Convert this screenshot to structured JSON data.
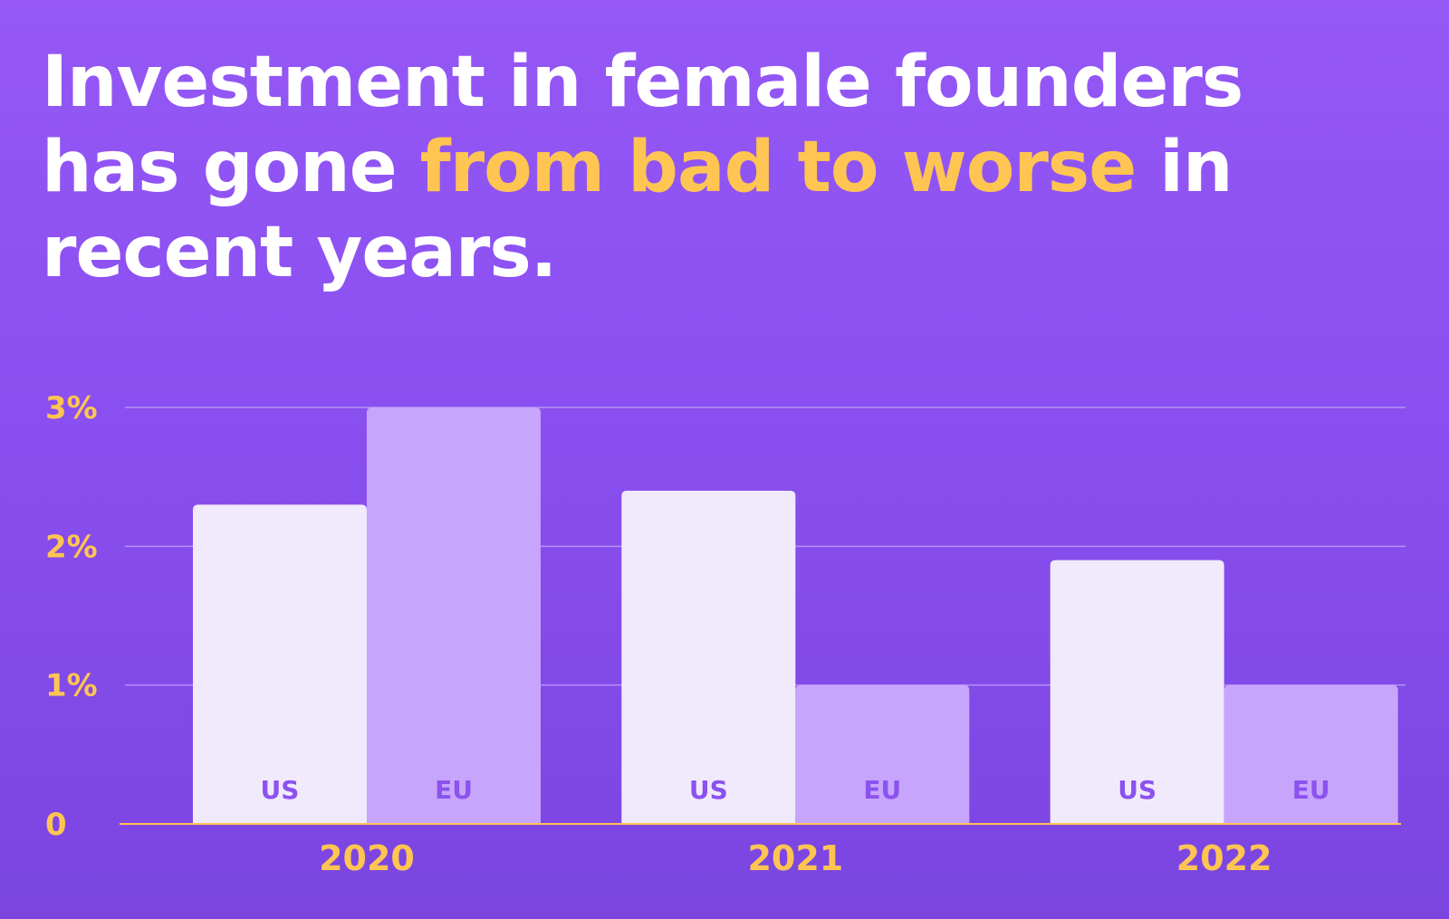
{
  "headline": {
    "part1": "Investment in female founders has gone ",
    "highlight": "from bad to worse",
    "part2": " in recent years."
  },
  "colors": {
    "background_top": "#9558f6",
    "background_bottom": "#7b45e0",
    "accent": "#ffc552",
    "us_bar": "#f1eafd",
    "eu_bar": "#c7a5fc",
    "bar_label": "#8b52ee",
    "grid": "#b592f5"
  },
  "chart_data": {
    "type": "bar",
    "categories": [
      "2020",
      "2021",
      "2022"
    ],
    "series": [
      {
        "name": "US",
        "values": [
          2.3,
          2.4,
          1.9
        ]
      },
      {
        "name": "EU",
        "values": [
          3.0,
          1.0,
          1.0
        ]
      }
    ],
    "ylim": [
      0,
      3
    ],
    "y_ticks": [
      {
        "value": 0,
        "label": "0"
      },
      {
        "value": 1,
        "label": "1%"
      },
      {
        "value": 2,
        "label": "2%"
      },
      {
        "value": 3,
        "label": "3%"
      }
    ],
    "grid": true,
    "legend": "inside-bars",
    "title": "",
    "xlabel": "",
    "ylabel": ""
  }
}
